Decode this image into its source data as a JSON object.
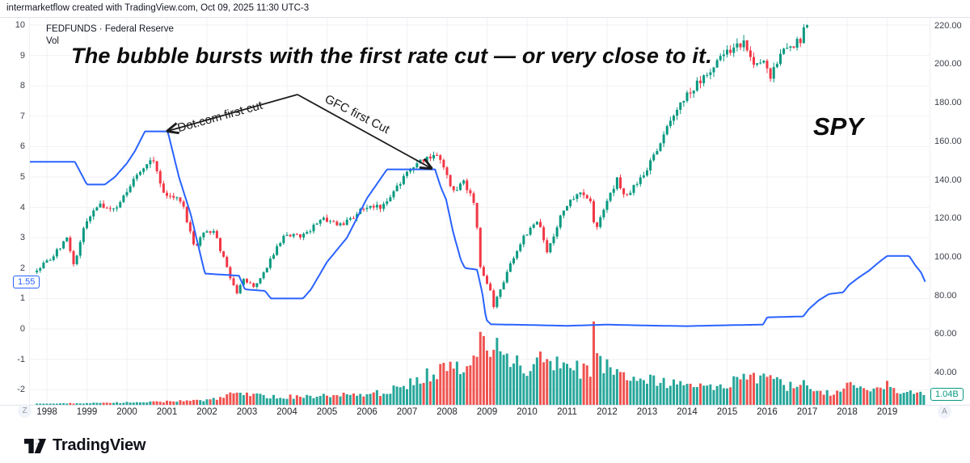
{
  "attribution": "intermarketflow created with TradingView.com, Oct 09, 2025 11:30 UTC-3",
  "legend": {
    "symbol_title": "FEDFUNDS · Federal Reserve",
    "indicator_label": "Vol"
  },
  "annotation": {
    "headline": "The bubble bursts with the first rate cut — or very close to it.",
    "arrow_left_label": "Dot.com first cut",
    "arrow_right_label": "GFC first Cut",
    "overlay_symbol_label": "SPY"
  },
  "badges": {
    "fedfunds_last": "1.55",
    "volume_last": "1.04B"
  },
  "toolbar": {
    "timezone_button": "Z",
    "auto_scale_button": "A"
  },
  "footer": {
    "brand": "TradingView"
  },
  "axes": {
    "left_ticks": [
      10,
      9,
      8,
      7,
      6,
      5,
      4,
      3,
      2,
      1,
      0,
      -1,
      -2
    ],
    "right_ticks": [
      "220.00",
      "200.00",
      "180.00",
      "160.00",
      "140.00",
      "120.00",
      "100.00",
      "80.00",
      "60.00",
      "40.00"
    ],
    "years": [
      "1998",
      "1999",
      "2000",
      "2001",
      "2002",
      "2003",
      "2004",
      "2005",
      "2006",
      "2007",
      "2008",
      "2009",
      "2010",
      "2011",
      "2012",
      "2013",
      "2014",
      "2015",
      "2016",
      "2017",
      "2018",
      "2019"
    ]
  },
  "chart_data": {
    "type": "mixed",
    "title": "FEDFUNDS with SPY overlay and volume",
    "x_range": [
      1997.55,
      2020.0
    ],
    "left_axis_range": [
      -2.5,
      10.3
    ],
    "right_axis_range": [
      23,
      224
    ],
    "grid": true,
    "colors": {
      "fedfunds_line": "#2962ff",
      "candle_up": "#089981",
      "candle_down": "#f23645",
      "volume_up": "#26a69a",
      "volume_down": "#ef5350",
      "grid": "#f0f1f4"
    },
    "series": [
      {
        "name": "FEDFUNDS",
        "type": "line",
        "axis": "left",
        "last_value": 1.55,
        "keypoints": [
          [
            1997.55,
            5.5
          ],
          [
            1998.7,
            5.5
          ],
          [
            1999.0,
            4.75
          ],
          [
            1999.45,
            4.75
          ],
          [
            1999.7,
            5.0
          ],
          [
            2000.0,
            5.45
          ],
          [
            2000.2,
            5.85
          ],
          [
            2000.45,
            6.5
          ],
          [
            2001.02,
            6.5
          ],
          [
            2001.3,
            5.0
          ],
          [
            2001.6,
            3.75
          ],
          [
            2001.95,
            1.82
          ],
          [
            2002.8,
            1.75
          ],
          [
            2002.95,
            1.3
          ],
          [
            2003.45,
            1.25
          ],
          [
            2003.6,
            1.0
          ],
          [
            2004.4,
            1.0
          ],
          [
            2004.6,
            1.3
          ],
          [
            2005.0,
            2.2
          ],
          [
            2005.5,
            3.0
          ],
          [
            2006.0,
            4.3
          ],
          [
            2006.5,
            5.25
          ],
          [
            2007.7,
            5.25
          ],
          [
            2007.85,
            4.65
          ],
          [
            2007.98,
            4.25
          ],
          [
            2008.15,
            3.2
          ],
          [
            2008.35,
            2.25
          ],
          [
            2008.45,
            2.0
          ],
          [
            2008.75,
            1.95
          ],
          [
            2008.88,
            1.2
          ],
          [
            2008.98,
            0.3
          ],
          [
            2009.1,
            0.15
          ],
          [
            2010.0,
            0.13
          ],
          [
            2011.0,
            0.1
          ],
          [
            2012.0,
            0.14
          ],
          [
            2013.0,
            0.11
          ],
          [
            2014.0,
            0.09
          ],
          [
            2015.0,
            0.12
          ],
          [
            2015.9,
            0.14
          ],
          [
            2016.0,
            0.38
          ],
          [
            2016.9,
            0.41
          ],
          [
            2017.05,
            0.66
          ],
          [
            2017.3,
            0.95
          ],
          [
            2017.55,
            1.15
          ],
          [
            2017.9,
            1.2
          ],
          [
            2018.05,
            1.45
          ],
          [
            2018.3,
            1.7
          ],
          [
            2018.55,
            1.92
          ],
          [
            2018.8,
            2.2
          ],
          [
            2019.0,
            2.4
          ],
          [
            2019.55,
            2.4
          ],
          [
            2019.7,
            2.1
          ],
          [
            2019.85,
            1.85
          ],
          [
            2019.95,
            1.55
          ]
        ]
      },
      {
        "name": "SPY",
        "type": "candlestick",
        "axis": "right",
        "interval": "monthly",
        "start": 1997.75,
        "end": 2017.08,
        "close_keypoints": [
          [
            1997.75,
            93
          ],
          [
            1998.17,
            101
          ],
          [
            1998.5,
            110
          ],
          [
            1998.67,
            95
          ],
          [
            1998.92,
            116
          ],
          [
            1999.3,
            127
          ],
          [
            1999.75,
            125
          ],
          [
            2000.2,
            142
          ],
          [
            2000.65,
            152
          ],
          [
            2000.92,
            132
          ],
          [
            2001.35,
            130
          ],
          [
            2001.7,
            104
          ],
          [
            2001.92,
            114
          ],
          [
            2002.2,
            112
          ],
          [
            2002.55,
            91
          ],
          [
            2002.75,
            81
          ],
          [
            2002.92,
            88
          ],
          [
            2003.2,
            84
          ],
          [
            2003.92,
            111
          ],
          [
            2004.4,
            111
          ],
          [
            2004.92,
            120
          ],
          [
            2005.3,
            116
          ],
          [
            2005.92,
            125
          ],
          [
            2006.4,
            126
          ],
          [
            2006.92,
            141
          ],
          [
            2007.4,
            151
          ],
          [
            2007.75,
            153
          ],
          [
            2007.92,
            146
          ],
          [
            2008.17,
            133
          ],
          [
            2008.4,
            140
          ],
          [
            2008.67,
            128
          ],
          [
            2008.75,
            116
          ],
          [
            2008.83,
            96
          ],
          [
            2008.92,
            90
          ],
          [
            2009.08,
            83
          ],
          [
            2009.17,
            73
          ],
          [
            2009.25,
            79
          ],
          [
            2009.5,
            92
          ],
          [
            2009.92,
            111
          ],
          [
            2010.3,
            119
          ],
          [
            2010.5,
            103
          ],
          [
            2010.92,
            125
          ],
          [
            2011.3,
            135
          ],
          [
            2011.58,
            129
          ],
          [
            2011.7,
            113
          ],
          [
            2011.92,
            125
          ],
          [
            2012.25,
            140
          ],
          [
            2012.42,
            131
          ],
          [
            2012.92,
            142
          ],
          [
            2013.4,
            163
          ],
          [
            2013.92,
            182
          ],
          [
            2014.5,
            195
          ],
          [
            2014.92,
            205
          ],
          [
            2015.4,
            211
          ],
          [
            2015.65,
            198
          ],
          [
            2015.92,
            204
          ],
          [
            2016.08,
            193
          ],
          [
            2016.33,
            205
          ],
          [
            2016.5,
            209
          ],
          [
            2016.83,
            212
          ],
          [
            2016.92,
            217
          ],
          [
            2017.08,
            222
          ]
        ]
      },
      {
        "name": "Vol",
        "type": "bar",
        "pane": "bottom",
        "units": "billions",
        "scale_max": 9.0,
        "last_value": 1.04,
        "keypoints_billions": [
          [
            1997.75,
            0.12
          ],
          [
            1999.0,
            0.18
          ],
          [
            2000.0,
            0.25
          ],
          [
            2001.0,
            0.35
          ],
          [
            2001.7,
            0.55
          ],
          [
            2002.0,
            0.5
          ],
          [
            2002.5,
            0.9
          ],
          [
            2002.7,
            1.3
          ],
          [
            2003.0,
            1.1
          ],
          [
            2003.5,
            0.9
          ],
          [
            2004.0,
            0.85
          ],
          [
            2005.0,
            1.0
          ],
          [
            2006.0,
            1.15
          ],
          [
            2006.5,
            1.35
          ],
          [
            2007.0,
            2.2
          ],
          [
            2007.5,
            3.3
          ],
          [
            2008.0,
            3.6
          ],
          [
            2008.5,
            3.8
          ],
          [
            2008.75,
            5.5
          ],
          [
            2008.83,
            9.0
          ],
          [
            2008.92,
            6.5
          ],
          [
            2009.17,
            6.0
          ],
          [
            2009.5,
            5.0
          ],
          [
            2009.9,
            4.0
          ],
          [
            2010.2,
            3.8
          ],
          [
            2010.4,
            5.6
          ],
          [
            2010.7,
            4.2
          ],
          [
            2011.0,
            3.5
          ],
          [
            2011.6,
            4.0
          ],
          [
            2011.67,
            7.8
          ],
          [
            2011.9,
            4.5
          ],
          [
            2012.2,
            3.2
          ],
          [
            2012.9,
            2.8
          ],
          [
            2013.5,
            2.4
          ],
          [
            2014.0,
            2.2
          ],
          [
            2014.8,
            2.0
          ],
          [
            2015.0,
            2.3
          ],
          [
            2015.65,
            2.8
          ],
          [
            2016.08,
            2.6
          ],
          [
            2016.5,
            2.0
          ],
          [
            2016.9,
            2.2
          ],
          [
            2017.3,
            1.5
          ],
          [
            2017.8,
            1.2
          ],
          [
            2018.08,
            2.2
          ],
          [
            2018.5,
            1.7
          ],
          [
            2018.95,
            2.3
          ],
          [
            2019.3,
            1.4
          ],
          [
            2019.6,
            1.3
          ],
          [
            2019.95,
            1.04
          ]
        ]
      }
    ],
    "annotations": {
      "apex": [
        368,
        117
      ],
      "arrow_left_tip": [
        208,
        162
      ],
      "arrow_right_tip": [
        533,
        208
      ]
    }
  }
}
